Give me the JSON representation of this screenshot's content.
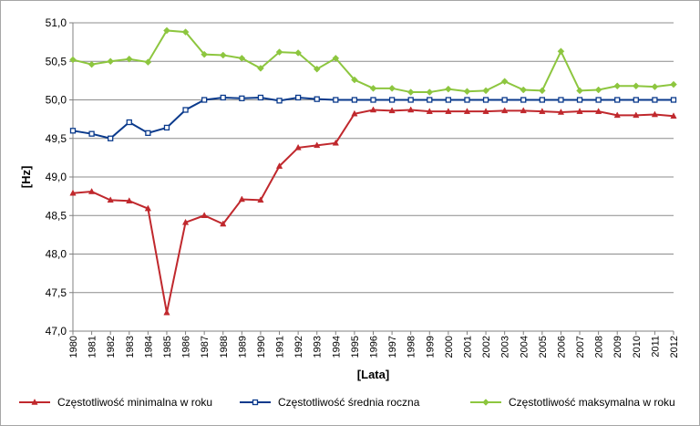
{
  "chart_data": {
    "type": "line",
    "xlabel": "[Lata]",
    "ylabel": "[Hz]",
    "ylim": [
      47.0,
      51.0
    ],
    "ytick_step": 0.5,
    "yticks": [
      "47,0",
      "47,5",
      "48,0",
      "48,5",
      "49,0",
      "49,5",
      "50,0",
      "50,5",
      "51,0"
    ],
    "grid": true,
    "legend_position": "bottom",
    "x": [
      "1980",
      "1981",
      "1982",
      "1983",
      "1984",
      "1985",
      "1986",
      "1987",
      "1988",
      "1989",
      "1990",
      "1991",
      "1992",
      "1993",
      "1994",
      "1995",
      "1996",
      "1997",
      "1998",
      "1999",
      "2000",
      "2001",
      "2002",
      "2003",
      "2004",
      "2005",
      "2006",
      "2007",
      "2008",
      "2009",
      "2010",
      "2011",
      "2012"
    ],
    "series": [
      {
        "name": "Częstotliwość minimalna w roku",
        "color": "#c0282d",
        "marker": "triangle",
        "values": [
          48.79,
          48.81,
          48.7,
          48.69,
          48.59,
          47.24,
          48.41,
          48.5,
          48.39,
          48.71,
          48.7,
          49.14,
          49.38,
          49.41,
          49.44,
          49.82,
          49.87,
          49.86,
          49.87,
          49.85,
          49.85,
          49.85,
          49.85,
          49.86,
          49.86,
          49.85,
          49.84,
          49.85,
          49.85,
          49.8,
          49.8,
          49.81,
          49.79
        ]
      },
      {
        "name": "Częstotliwość średnia roczna",
        "color": "#0a3a8c",
        "marker": "square",
        "values": [
          49.6,
          49.56,
          49.5,
          49.71,
          49.57,
          49.64,
          49.87,
          50.0,
          50.03,
          50.02,
          50.03,
          49.99,
          50.03,
          50.01,
          50.0,
          50.0,
          50.0,
          50.0,
          50.0,
          50.0,
          50.0,
          50.0,
          50.0,
          50.0,
          50.0,
          50.0,
          50.0,
          50.0,
          50.0,
          50.0,
          50.0,
          50.0,
          50.0
        ]
      },
      {
        "name": "Częstotliwość maksymalna w roku",
        "color": "#8dc63f",
        "marker": "diamond",
        "values": [
          50.52,
          50.46,
          50.5,
          50.53,
          50.49,
          50.9,
          50.88,
          50.59,
          50.58,
          50.54,
          50.41,
          50.62,
          50.61,
          50.4,
          50.54,
          50.26,
          50.15,
          50.15,
          50.1,
          50.1,
          50.14,
          50.11,
          50.12,
          50.24,
          50.13,
          50.12,
          50.63,
          50.12,
          50.13,
          50.18,
          50.18,
          50.17,
          50.2
        ]
      }
    ]
  }
}
